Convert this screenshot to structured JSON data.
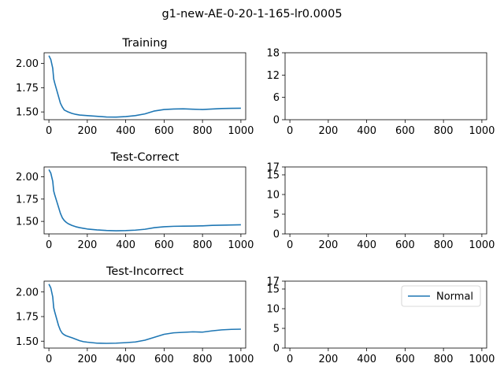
{
  "figure": {
    "suptitle": "g1-new-AE-0-20-1-165-lr0.0005",
    "background": "#ffffff",
    "line_color": "#1f77b4"
  },
  "chart_data": [
    {
      "id": "training",
      "type": "line",
      "title": "Training",
      "xlim": [
        -25,
        1025
      ],
      "ylim": [
        1.42,
        2.11
      ],
      "xticks": [
        0,
        200,
        400,
        600,
        800,
        1000
      ],
      "yticks": [
        1.5,
        1.75,
        2.0
      ],
      "ytick_labels": [
        "1.50",
        "1.75",
        "2.00"
      ],
      "series": [
        {
          "x": [
            0,
            10,
            20,
            25,
            30,
            40,
            50,
            60,
            70,
            80,
            90,
            100,
            120,
            140,
            160,
            180,
            200,
            250,
            300,
            350,
            400,
            450,
            500,
            550,
            600,
            650,
            700,
            750,
            800,
            850,
            900,
            950,
            1000
          ],
          "y": [
            2.08,
            2.04,
            1.95,
            1.84,
            1.8,
            1.73,
            1.66,
            1.59,
            1.55,
            1.52,
            1.51,
            1.5,
            1.485,
            1.475,
            1.468,
            1.465,
            1.462,
            1.455,
            1.448,
            1.447,
            1.452,
            1.462,
            1.48,
            1.51,
            1.525,
            1.53,
            1.532,
            1.528,
            1.525,
            1.53,
            1.535,
            1.537,
            1.538
          ]
        }
      ]
    },
    {
      "id": "test-correct",
      "type": "line",
      "title": "Test-Correct",
      "xlim": [
        -25,
        1025
      ],
      "ylim": [
        1.36,
        2.11
      ],
      "xticks": [
        0,
        200,
        400,
        600,
        800,
        1000
      ],
      "yticks": [
        1.5,
        1.75,
        2.0
      ],
      "ytick_labels": [
        "1.50",
        "1.75",
        "2.00"
      ],
      "series": [
        {
          "x": [
            0,
            10,
            20,
            25,
            30,
            40,
            50,
            60,
            70,
            80,
            90,
            100,
            120,
            140,
            160,
            180,
            200,
            250,
            300,
            350,
            400,
            450,
            500,
            550,
            600,
            650,
            700,
            750,
            800,
            850,
            900,
            950,
            1000
          ],
          "y": [
            2.08,
            2.04,
            1.95,
            1.84,
            1.8,
            1.73,
            1.66,
            1.59,
            1.54,
            1.51,
            1.49,
            1.475,
            1.455,
            1.44,
            1.43,
            1.422,
            1.415,
            1.405,
            1.398,
            1.395,
            1.397,
            1.402,
            1.412,
            1.43,
            1.44,
            1.445,
            1.447,
            1.448,
            1.45,
            1.455,
            1.458,
            1.46,
            1.462
          ]
        }
      ]
    },
    {
      "id": "test-incorrect",
      "type": "line",
      "title": "Test-Incorrect",
      "xlim": [
        -25,
        1025
      ],
      "ylim": [
        1.43,
        2.11
      ],
      "xticks": [
        0,
        200,
        400,
        600,
        800,
        1000
      ],
      "yticks": [
        1.5,
        1.75,
        2.0
      ],
      "ytick_labels": [
        "1.50",
        "1.75",
        "2.00"
      ],
      "series": [
        {
          "x": [
            0,
            10,
            20,
            25,
            30,
            40,
            50,
            60,
            70,
            80,
            90,
            100,
            120,
            140,
            160,
            180,
            200,
            250,
            300,
            350,
            400,
            450,
            500,
            550,
            600,
            650,
            700,
            750,
            800,
            850,
            900,
            950,
            1000
          ],
          "y": [
            2.08,
            2.04,
            1.95,
            1.84,
            1.8,
            1.73,
            1.66,
            1.61,
            1.58,
            1.565,
            1.555,
            1.548,
            1.535,
            1.52,
            1.505,
            1.495,
            1.49,
            1.48,
            1.478,
            1.48,
            1.485,
            1.492,
            1.51,
            1.54,
            1.57,
            1.585,
            1.59,
            1.595,
            1.592,
            1.605,
            1.615,
            1.62,
            1.622
          ]
        }
      ]
    },
    {
      "id": "right-top",
      "type": "line",
      "title": "",
      "xlim": [
        -25,
        1025
      ],
      "ylim": [
        0,
        18
      ],
      "xticks": [
        0,
        200,
        400,
        600,
        800,
        1000
      ],
      "yticks": [
        0,
        6,
        12,
        18
      ],
      "ytick_labels": [
        "0",
        "6",
        "12",
        "18"
      ],
      "series": []
    },
    {
      "id": "right-middle",
      "type": "line",
      "title": "",
      "xlim": [
        -25,
        1025
      ],
      "ylim": [
        0,
        17
      ],
      "xticks": [
        0,
        200,
        400,
        600,
        800,
        1000
      ],
      "yticks": [
        0,
        5,
        10,
        15,
        17
      ],
      "ytick_labels": [
        "0",
        "5",
        "10",
        "15",
        "17"
      ],
      "series": []
    },
    {
      "id": "right-bottom",
      "type": "line",
      "title": "",
      "xlim": [
        -25,
        1025
      ],
      "ylim": [
        0,
        17
      ],
      "xticks": [
        0,
        200,
        400,
        600,
        800,
        1000
      ],
      "yticks": [
        0,
        5,
        10,
        15,
        17
      ],
      "ytick_labels": [
        "0",
        "5",
        "10",
        "15",
        "17"
      ],
      "series": [],
      "legend": {
        "labels": [
          "Normal"
        ],
        "placement": "upper right"
      }
    }
  ]
}
